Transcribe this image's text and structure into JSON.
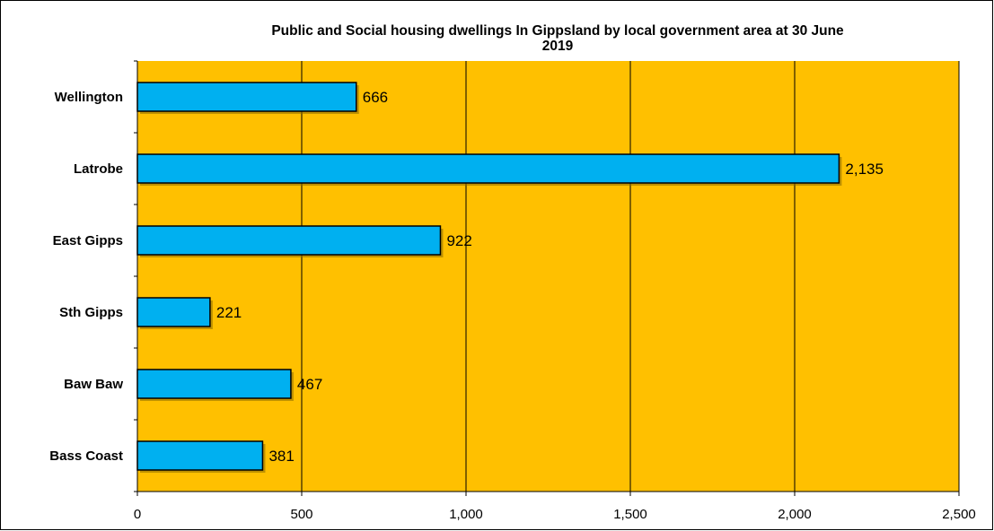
{
  "chart_data": {
    "type": "bar",
    "orientation": "horizontal",
    "title": "Public and Social housing dwellings In Gippsland by local government area at 30 June\n2019",
    "categories": [
      "Wellington",
      "Latrobe",
      "East Gipps",
      "Sth Gipps",
      "Baw Baw",
      "Bass Coast"
    ],
    "values": [
      666,
      2135,
      922,
      221,
      467,
      381
    ],
    "data_labels": [
      "666",
      "2,135",
      "922",
      "221",
      "467",
      "381"
    ],
    "xlim": [
      0,
      2500
    ],
    "xticks": [
      0,
      500,
      1000,
      1500,
      2000,
      2500
    ],
    "xtick_labels": [
      "0",
      "500",
      "1,000",
      "1,500",
      "2,000",
      "2,500"
    ],
    "xlabel": "",
    "ylabel": "",
    "grid": "vertical",
    "legend": "none",
    "colors": {
      "plot_background": "#FFC000",
      "bar_fill": "#00B0F0",
      "bar_stroke": "#000000",
      "gridline": "#000000"
    }
  }
}
